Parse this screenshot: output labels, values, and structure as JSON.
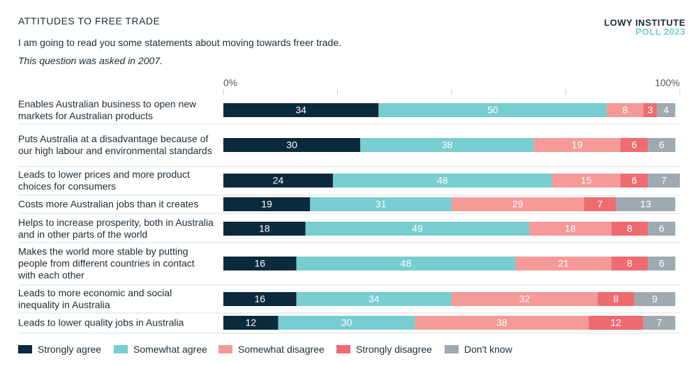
{
  "chart_data": {
    "type": "stacked-bar",
    "title": "ATTITUDES TO FREE TRADE",
    "subtitle": "I am going to read you some statements about moving towards freer trade.",
    "note": "This question was asked in 2007.",
    "source": "LOWY INSTITUTE",
    "source_sub": "POLL 2023",
    "categories": [
      "Enables Australian business to open new markets for Australian products",
      "Puts Australia at a disadvantage because of our high labour and environmental standards",
      "Leads to lower prices and more product choices for consumers",
      "Costs more Australian jobs than it creates",
      "Helps to increase prosperity, both in Australia and in other parts of the world",
      "Makes the world more stable by putting people from different countries in contact with each other",
      "Leads to more economic and social inequality in Australia",
      "Leads to lower quality jobs in Australia"
    ],
    "series": [
      {
        "name": "Strongly agree",
        "color": "#0b2a3e",
        "values": [
          34,
          30,
          24,
          19,
          18,
          16,
          16,
          12
        ]
      },
      {
        "name": "Somewhat agree",
        "color": "#77cdd0",
        "values": [
          50,
          38,
          48,
          31,
          49,
          48,
          34,
          30
        ]
      },
      {
        "name": "Somewhat disagree",
        "color": "#f59a98",
        "values": [
          8,
          19,
          15,
          29,
          18,
          21,
          32,
          38
        ]
      },
      {
        "name": "Strongly disagree",
        "color": "#ee6b70",
        "values": [
          3,
          6,
          6,
          7,
          8,
          8,
          8,
          12
        ]
      },
      {
        "name": "Don't know",
        "color": "#9ea9b0",
        "values": [
          4,
          6,
          7,
          13,
          6,
          6,
          9,
          7
        ]
      }
    ],
    "xlim": [
      0,
      100
    ],
    "xticks": [
      {
        "value": 0,
        "label": "0%"
      },
      {
        "value": 25,
        "label": null
      },
      {
        "value": 50,
        "label": null
      },
      {
        "value": 75,
        "label": null
      },
      {
        "value": 100,
        "label": "100%"
      }
    ]
  }
}
